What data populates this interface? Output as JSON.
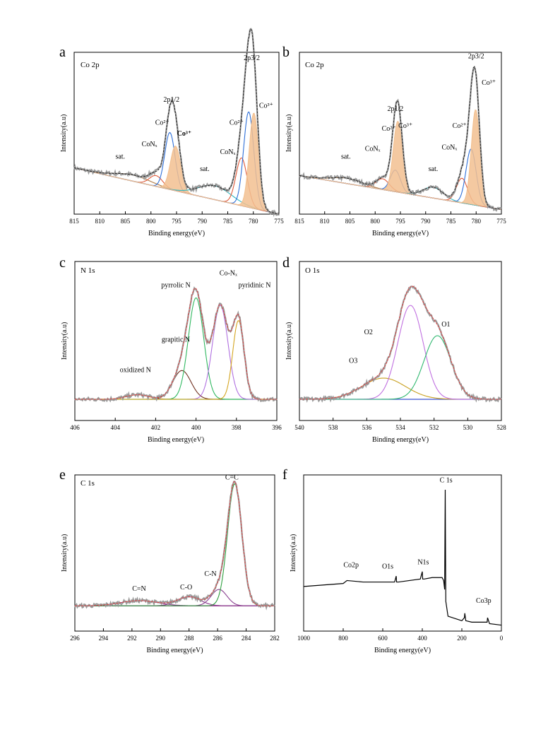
{
  "chart_data": [
    {
      "panel": "a",
      "type": "line",
      "corner_label": "Co 2p",
      "xlabel": "Binding energy(eV)",
      "ylabel": "Intensity(a.u)",
      "xlim": [
        815,
        775
      ],
      "xticks": [
        815,
        810,
        805,
        800,
        795,
        790,
        785,
        780,
        775
      ],
      "ylim": [
        0,
        1.05
      ],
      "background": {
        "color": "#e06a2b",
        "start": 0.3,
        "end": 0.0
      },
      "components": [
        {
          "color": "#b07840",
          "center": 803.5,
          "width": 3.5,
          "height": 0.04
        },
        {
          "color": "#e05a3a",
          "center": 799.0,
          "width": 1.3,
          "height": 0.07
        },
        {
          "color": "#2e6fd8",
          "center": 796.3,
          "width": 1.0,
          "height": 0.37
        },
        {
          "color": "#f2c090",
          "center": 795.2,
          "width": 1.0,
          "height": 0.29,
          "fill": true
        },
        {
          "color": "#30b8c0",
          "center": 787.5,
          "width": 3.2,
          "height": 0.09
        },
        {
          "color": "#e05a3a",
          "center": 782.3,
          "width": 1.1,
          "height": 0.31
        },
        {
          "color": "#2e6fd8",
          "center": 780.9,
          "width": 1.0,
          "height": 0.62
        },
        {
          "color": "#f2c090",
          "center": 779.9,
          "width": 0.9,
          "height": 0.62,
          "fill": true
        }
      ],
      "annotations": [
        {
          "text": "2p3/2",
          "x": 780.3,
          "y": 1.0
        },
        {
          "text": "Co³⁺",
          "x": 777.5,
          "y": 0.69
        },
        {
          "text": "Co²⁺",
          "x": 783.3,
          "y": 0.58
        },
        {
          "text": "CoNₓ",
          "x": 785.0,
          "y": 0.39
        },
        {
          "text": "sat.",
          "x": 789.5,
          "y": 0.28
        },
        {
          "text": "2p1/2",
          "x": 796.0,
          "y": 0.73
        },
        {
          "text": "Co²⁺",
          "x": 797.8,
          "y": 0.58
        },
        {
          "text": "Co³⁺",
          "x": 793.5,
          "y": 0.51,
          "bold": true
        },
        {
          "text": "CoNₓ",
          "x": 800.3,
          "y": 0.44
        },
        {
          "text": "sat.",
          "x": 806.0,
          "y": 0.36
        }
      ]
    },
    {
      "panel": "b",
      "type": "line",
      "corner_label": "Co 2p",
      "xlabel": "Binding energy(eV)",
      "ylabel": "Intensity(a.u)",
      "xlim": [
        815,
        775
      ],
      "xticks": [
        815,
        810,
        805,
        800,
        795,
        790,
        785,
        780,
        775
      ],
      "ylim": [
        0,
        1.05
      ],
      "background": {
        "color": "#c03050",
        "start": 0.25,
        "end": 0.03
      },
      "components": [
        {
          "color": "#b07840",
          "center": 805.5,
          "width": 3.0,
          "height": 0.035
        },
        {
          "color": "#e05a3a",
          "center": 798.5,
          "width": 1.3,
          "height": 0.07
        },
        {
          "color": "#2e6fd8",
          "center": 796.0,
          "width": 1.0,
          "height": 0.14
        },
        {
          "color": "#f2c090",
          "center": 795.5,
          "width": 0.9,
          "height": 0.46,
          "fill": true
        },
        {
          "color": "#30b8c0",
          "center": 788.5,
          "width": 2.0,
          "height": 0.07
        },
        {
          "color": "#e05a3a",
          "center": 782.8,
          "width": 1.1,
          "height": 0.16
        },
        {
          "color": "#2e6fd8",
          "center": 781.0,
          "width": 1.0,
          "height": 0.36
        },
        {
          "color": "#f2c090",
          "center": 780.1,
          "width": 0.85,
          "height": 0.62,
          "fill": true
        }
      ],
      "annotations": [
        {
          "text": "2p3/2",
          "x": 780.0,
          "y": 1.01
        },
        {
          "text": "Co³⁺",
          "x": 777.5,
          "y": 0.84
        },
        {
          "text": "Co²⁺",
          "x": 783.3,
          "y": 0.56
        },
        {
          "text": "CoNₓ",
          "x": 785.3,
          "y": 0.42
        },
        {
          "text": "sat.",
          "x": 788.5,
          "y": 0.28
        },
        {
          "text": "2p1/2",
          "x": 796.0,
          "y": 0.67
        },
        {
          "text": "Co²⁺",
          "x": 797.3,
          "y": 0.54
        },
        {
          "text": "Co³⁺",
          "x": 794.0,
          "y": 0.56
        },
        {
          "text": "CoNₓ",
          "x": 800.5,
          "y": 0.41
        },
        {
          "text": "sat.",
          "x": 805.8,
          "y": 0.36
        }
      ]
    },
    {
      "panel": "c",
      "type": "line",
      "corner_label": "N 1s",
      "xlabel": "Binding energy(eV)",
      "ylabel": "Intensity(a.u)",
      "xlim": [
        406,
        396
      ],
      "xticks": [
        406,
        404,
        402,
        400,
        398,
        396
      ],
      "ylim": [
        0,
        1.05
      ],
      "background": {
        "color": "#2e9a3a",
        "start": 0.14,
        "end": 0.14
      },
      "components": [
        {
          "color": "#c08030",
          "center": 402.9,
          "width": 0.55,
          "height": 0.03
        },
        {
          "color": "#703020",
          "center": 400.7,
          "width": 0.45,
          "height": 0.19
        },
        {
          "color": "#30b860",
          "center": 400.0,
          "width": 0.38,
          "height": 0.67
        },
        {
          "color": "#b070e0",
          "center": 398.8,
          "width": 0.38,
          "height": 0.62
        },
        {
          "color": "#d4a520",
          "center": 397.9,
          "width": 0.28,
          "height": 0.52
        }
      ],
      "annotations": [
        {
          "text": "pyrrolic N",
          "x": 401.0,
          "y": 0.88
        },
        {
          "text": "Co-Nₓ",
          "x": 398.4,
          "y": 0.96
        },
        {
          "text": "pyridinic N",
          "x": 397.1,
          "y": 0.88
        },
        {
          "text": "grapitic N",
          "x": 401.0,
          "y": 0.52
        },
        {
          "text": "oxidized N",
          "x": 403.0,
          "y": 0.32
        }
      ]
    },
    {
      "panel": "d",
      "type": "line",
      "corner_label": "O 1s",
      "xlabel": "Binding energy(eV)",
      "ylabel": "Intensity(a.u)",
      "xlim": [
        540,
        528
      ],
      "xticks": [
        540,
        538,
        536,
        534,
        532,
        530,
        528
      ],
      "ylim": [
        0,
        1.05
      ],
      "background": {
        "color": "#3a50d0",
        "start": 0.14,
        "end": 0.14
      },
      "components": [
        {
          "color": "#c8a020",
          "center": 535.0,
          "width": 1.3,
          "height": 0.14
        },
        {
          "color": "#c070e0",
          "center": 533.4,
          "width": 0.75,
          "height": 0.62
        },
        {
          "color": "#30b870",
          "center": 531.8,
          "width": 0.8,
          "height": 0.42
        }
      ],
      "annotations": [
        {
          "text": "O1",
          "x": 531.3,
          "y": 0.62
        },
        {
          "text": "O2",
          "x": 535.9,
          "y": 0.57
        },
        {
          "text": "O3",
          "x": 536.8,
          "y": 0.38
        }
      ]
    },
    {
      "panel": "e",
      "type": "line",
      "corner_label": "C 1s",
      "xlabel": "Binding energy(eV)",
      "ylabel": "Intensity(a.u)",
      "xlim": [
        296,
        282
      ],
      "xticks": [
        296,
        294,
        292,
        290,
        288,
        286,
        284,
        282
      ],
      "ylim": [
        0,
        1.05
      ],
      "background": {
        "color": "#c02080",
        "start": 0.17,
        "end": 0.17
      },
      "components": [
        {
          "color": "#8a4090",
          "center": 291.5,
          "width": 1.3,
          "height": 0.035
        },
        {
          "color": "#8a4090",
          "center": 288.0,
          "width": 0.8,
          "height": 0.06
        },
        {
          "color": "#8a4090",
          "center": 285.9,
          "width": 0.55,
          "height": 0.11
        },
        {
          "color": "#30a040",
          "center": 284.8,
          "width": 0.5,
          "height": 0.82
        }
      ],
      "annotations": [
        {
          "text": "C=C",
          "x": 285.0,
          "y": 1.02
        },
        {
          "text": "C-N",
          "x": 286.5,
          "y": 0.37
        },
        {
          "text": "C-O",
          "x": 288.2,
          "y": 0.28
        },
        {
          "text": "C=N",
          "x": 291.5,
          "y": 0.27
        }
      ]
    },
    {
      "panel": "f",
      "type": "line",
      "corner_label": "",
      "xlabel": "Binding energy(eV)",
      "ylabel": "Intensity(a.u)",
      "xlim": [
        1000,
        0
      ],
      "xticks": [
        1000,
        800,
        600,
        400,
        200,
        0
      ],
      "ylim": [
        0,
        1.05
      ],
      "series": [
        {
          "x": [
            1000,
            900,
            800,
            781,
            700,
            600,
            540,
            532,
            530,
            520,
            410,
            400,
            398,
            390,
            350,
            300,
            292,
            287,
            284,
            281,
            270,
            200,
            187,
            185,
            180,
            150,
            100,
            72,
            70,
            60,
            0
          ],
          "y": [
            0.3,
            0.31,
            0.32,
            0.34,
            0.33,
            0.33,
            0.33,
            0.37,
            0.33,
            0.33,
            0.35,
            0.4,
            0.35,
            0.35,
            0.36,
            0.36,
            0.34,
            0.28,
            0.95,
            0.2,
            0.1,
            0.07,
            0.09,
            0.12,
            0.07,
            0.06,
            0.06,
            0.06,
            0.09,
            0.05,
            0.04
          ]
        }
      ],
      "annotations": [
        {
          "text": "C 1s",
          "x": 280.0,
          "y": 1.0
        },
        {
          "text": "Co2p",
          "x": 760.0,
          "y": 0.43
        },
        {
          "text": "O1s",
          "x": 575.0,
          "y": 0.42
        },
        {
          "text": "N1s",
          "x": 395.0,
          "y": 0.45
        },
        {
          "text": "Co3p",
          "x": 90.0,
          "y": 0.19
        }
      ]
    }
  ]
}
